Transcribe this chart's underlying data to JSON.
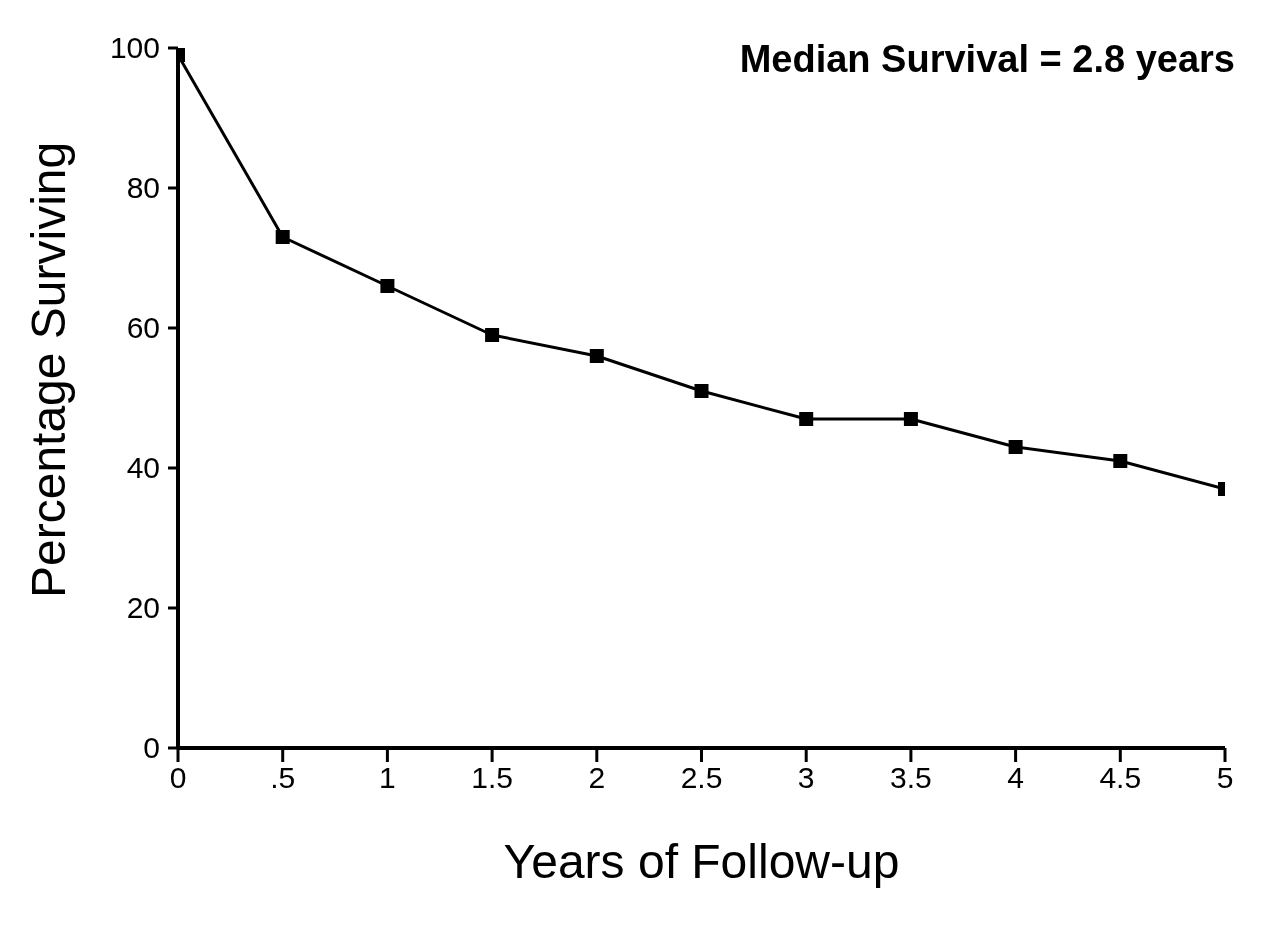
{
  "chart_data": {
    "type": "line",
    "xlabel": "Years of Follow-up",
    "ylabel": "Percentage Surviving",
    "annotations": [
      "Median Survival = 2.8 years"
    ],
    "x": [
      0,
      0.5,
      1,
      1.5,
      2,
      2.5,
      3,
      3.5,
      4,
      4.5,
      5
    ],
    "values": [
      99,
      73,
      66,
      59,
      56,
      51,
      47,
      47,
      43,
      41,
      37
    ],
    "color": "#000000",
    "marker": "square",
    "line_style": "solid",
    "grid": false,
    "xlim": [
      0,
      5
    ],
    "xticks": [
      0,
      {
        "value": 0.5,
        "label": ".5"
      },
      1,
      1.5,
      2,
      2.5,
      3,
      3.5,
      4,
      4.5,
      5
    ],
    "ylim": [
      0,
      100
    ],
    "yticks": [
      0,
      20,
      40,
      60,
      80,
      100
    ]
  }
}
